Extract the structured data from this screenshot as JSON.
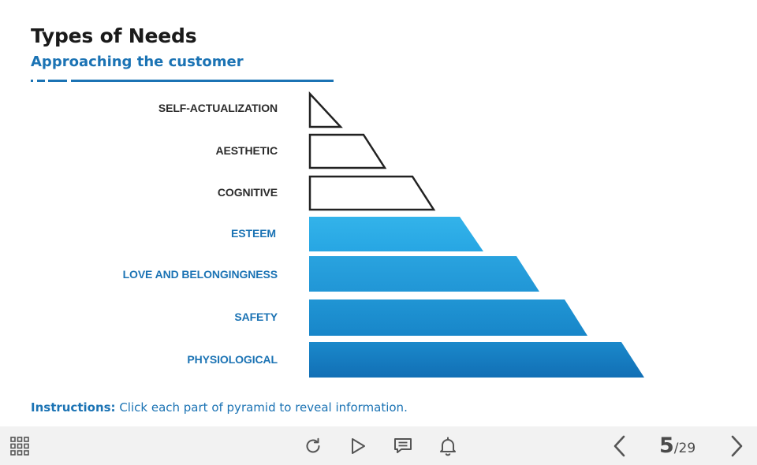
{
  "header": {
    "title": "Types of Needs",
    "subtitle": "Approaching the customer"
  },
  "pyramid": {
    "levels": [
      {
        "label": "SELF-ACTUALIZATION",
        "style": "outline"
      },
      {
        "label": "AESTHETIC",
        "style": "outline"
      },
      {
        "label": "COGNITIVE",
        "style": "outline"
      },
      {
        "label": "ESTEEM",
        "style": "filled"
      },
      {
        "label": "LOVE AND BELONGINGNESS",
        "style": "filled"
      },
      {
        "label": "SAFETY",
        "style": "filled"
      },
      {
        "label": "PHYSIOLOGICAL",
        "style": "filled"
      }
    ]
  },
  "instructions": {
    "prefix": "Instructions:",
    "text": " Click each part of pyramid to reveal information."
  },
  "toolbar": {
    "menu_icon": "grid-menu-icon",
    "replay_icon": "replay-icon",
    "play_icon": "play-icon",
    "notes_icon": "notes-icon",
    "notifications_icon": "bell-icon",
    "prev_icon": "chevron-left-icon",
    "next_icon": "chevron-right-icon",
    "current_page": "5",
    "total_pages": "/29"
  },
  "colors": {
    "accent_blue": "#1b73b4",
    "light_blue": "#2fb0e8",
    "dark_blue": "#1571b8",
    "outline": "#222222",
    "toolbar_bg": "#f2f2f2"
  }
}
